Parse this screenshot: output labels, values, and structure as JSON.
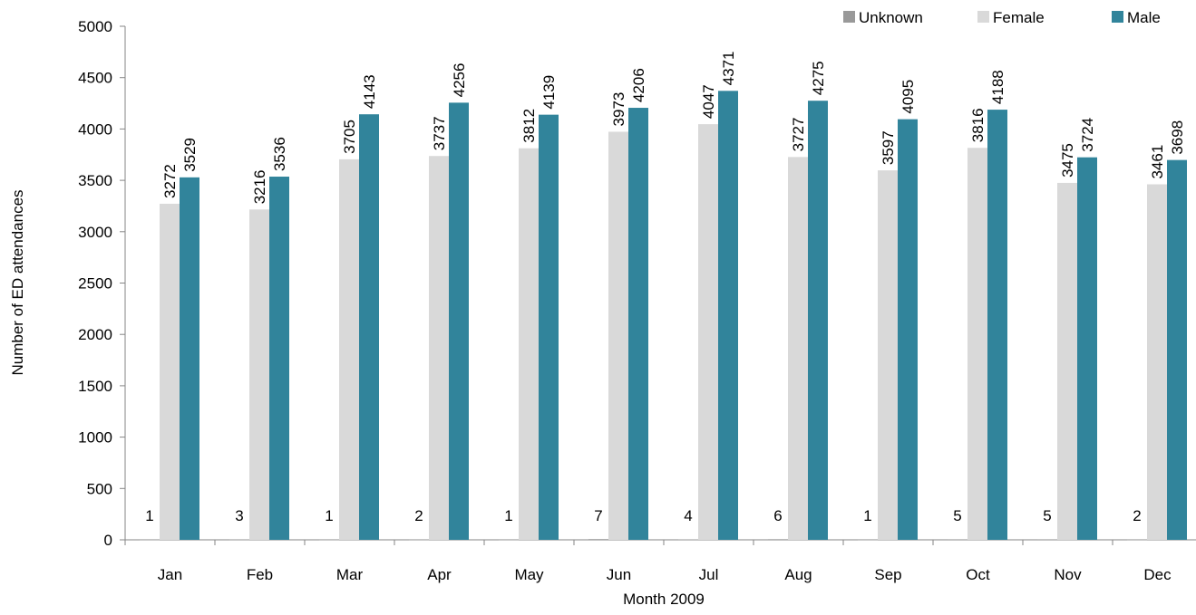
{
  "chart_data": {
    "type": "bar",
    "title": "",
    "xlabel": "Month 2009",
    "ylabel": "Number of ED attendances",
    "ylim": [
      0,
      5000
    ],
    "yticks": [
      0,
      500,
      1000,
      1500,
      2000,
      2500,
      3000,
      3500,
      4000,
      4500,
      5000
    ],
    "grid": false,
    "legend_position": "top-right",
    "categories": [
      "Jan",
      "Feb",
      "Mar",
      "Apr",
      "May",
      "Jun",
      "Jul",
      "Aug",
      "Sep",
      "Oct",
      "Nov",
      "Dec"
    ],
    "series": [
      {
        "name": "Unknown",
        "color": "#999999",
        "values": [
          1,
          3,
          1,
          2,
          1,
          7,
          4,
          6,
          1,
          5,
          5,
          2
        ]
      },
      {
        "name": "Female",
        "color": "#d9d9d9",
        "values": [
          3272,
          3216,
          3705,
          3737,
          3812,
          3973,
          4047,
          3727,
          3597,
          3816,
          3475,
          3461
        ]
      },
      {
        "name": "Male",
        "color": "#31849b",
        "values": [
          3529,
          3536,
          4143,
          4256,
          4139,
          4206,
          4371,
          4275,
          4095,
          4188,
          3724,
          3698
        ]
      }
    ]
  }
}
